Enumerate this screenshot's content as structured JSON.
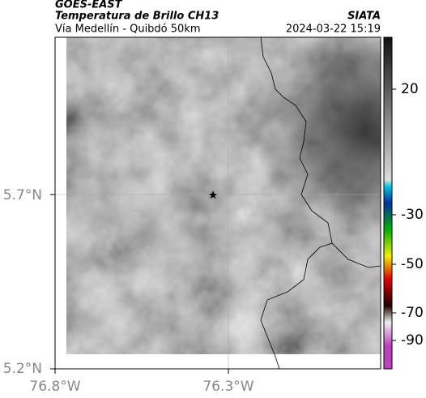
{
  "header": {
    "title": "GOES-EAST",
    "subtitle": "Temperatura de Brillo CH13",
    "region": "Vía Medellín - Quibdó 50km",
    "source": "SIATA",
    "datetime": "2024-03-22 15:19"
  },
  "axes": {
    "lat_labels": [
      "5.7°N",
      "5.2°N"
    ],
    "lon_labels": [
      "76.8°W",
      "76.3°W"
    ]
  },
  "colorbar": {
    "ticks": [
      20,
      -30,
      -50,
      -70,
      -90
    ]
  }
}
